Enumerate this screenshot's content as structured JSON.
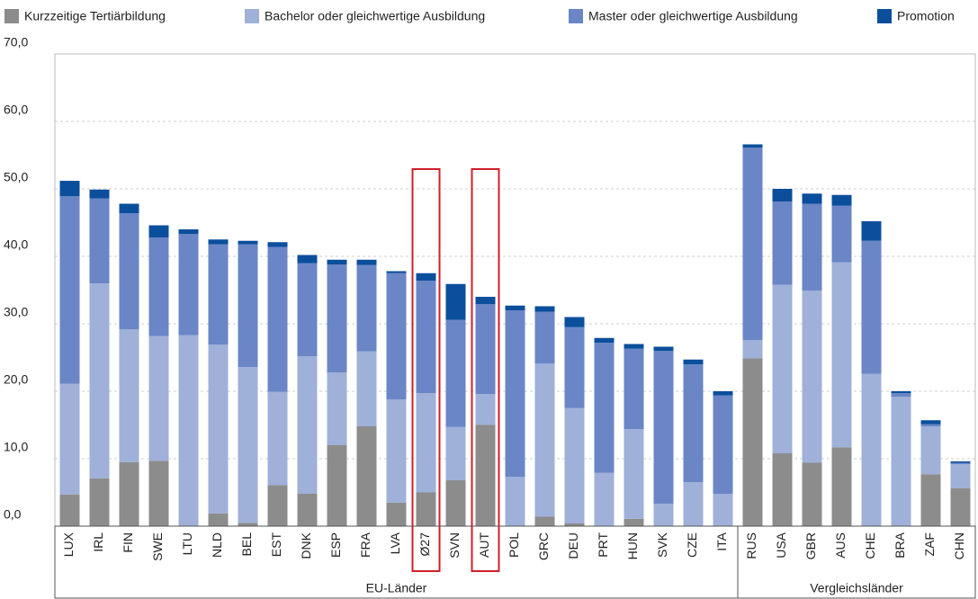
{
  "chart_data": {
    "type": "stacked_bar",
    "categories": [
      "LUX",
      "IRL",
      "FIN",
      "SWE",
      "LTU",
      "NLD",
      "BEL",
      "EST",
      "DNK",
      "ESP",
      "FRA",
      "LVA",
      "Ø27",
      "SVN",
      "AUT",
      "POL",
      "GRC",
      "DEU",
      "PRT",
      "HUN",
      "SVK",
      "CZE",
      "ITA",
      "RUS",
      "USA",
      "GBR",
      "AUS",
      "CHE",
      "BRA",
      "ZAF",
      "CHN"
    ],
    "series": [
      {
        "name": "Kurzzeitige Tertiärbildung",
        "color": "#8c8c8c",
        "values": [
          4.7,
          7.1,
          9.5,
          9.7,
          0,
          1.9,
          0.5,
          6.1,
          4.8,
          12.0,
          14.8,
          3.5,
          5.0,
          6.8,
          15.0,
          0,
          1.4,
          0.4,
          0,
          1.1,
          0,
          0,
          0,
          24.9,
          10.8,
          9.4,
          11.7,
          0,
          0,
          7.7,
          5.6
        ]
      },
      {
        "name": "Bachelor oder gleichwertige Ausbildung",
        "color": "#9fb0d9",
        "values": [
          16.4,
          28.9,
          19.7,
          18.5,
          28.3,
          25.0,
          23.1,
          13.8,
          20.4,
          10.8,
          11.1,
          15.3,
          14.7,
          7.9,
          4.6,
          7.3,
          22.7,
          17.1,
          7.9,
          13.3,
          3.3,
          6.5,
          4.8,
          2.7,
          25.0,
          25.5,
          27.4,
          22.6,
          19.2,
          7.1,
          3.6
        ]
      },
      {
        "name": "Master oder gleichwertige Ausbildung",
        "color": "#6a86c6",
        "values": [
          27.8,
          12.6,
          17.2,
          14.6,
          15.0,
          14.9,
          18.2,
          21.5,
          13.8,
          16.0,
          12.8,
          18.7,
          16.7,
          15.9,
          13.3,
          24.7,
          7.7,
          12.0,
          19.3,
          11.9,
          22.7,
          17.5,
          14.6,
          28.5,
          12.3,
          12.9,
          8.4,
          19.7,
          0.5,
          0.3,
          0.2
        ]
      },
      {
        "name": "Promotion",
        "color": "#0b4f9c",
        "values": [
          2.3,
          1.3,
          1.4,
          1.8,
          0.7,
          0.7,
          0.5,
          0.7,
          1.2,
          0.7,
          0.8,
          0.3,
          1.1,
          5.3,
          1.1,
          0.7,
          0.8,
          1.5,
          0.7,
          0.7,
          0.6,
          0.7,
          0.6,
          0.5,
          1.9,
          1.5,
          1.6,
          2.9,
          0.3,
          0.6,
          0.2
        ]
      }
    ],
    "ylim": [
      0,
      70
    ],
    "yticks": [
      {
        "value": 0,
        "label": "0,0"
      },
      {
        "value": 10,
        "label": "10,0"
      },
      {
        "value": 20,
        "label": "20,0"
      },
      {
        "value": 30,
        "label": "30,0"
      },
      {
        "value": 40,
        "label": "40,0"
      },
      {
        "value": 50,
        "label": "50,0"
      },
      {
        "value": 60,
        "label": "60,0"
      },
      {
        "value": 70,
        "label": "70,0"
      }
    ],
    "grid": true,
    "legend": "top",
    "highlight": [
      12,
      14
    ],
    "highlight_color": "#d0202a",
    "groups": [
      {
        "label": "EU-Länder",
        "from": 0,
        "to": 22
      },
      {
        "label": "Vergleichsländer",
        "from": 23,
        "to": 30
      }
    ]
  }
}
